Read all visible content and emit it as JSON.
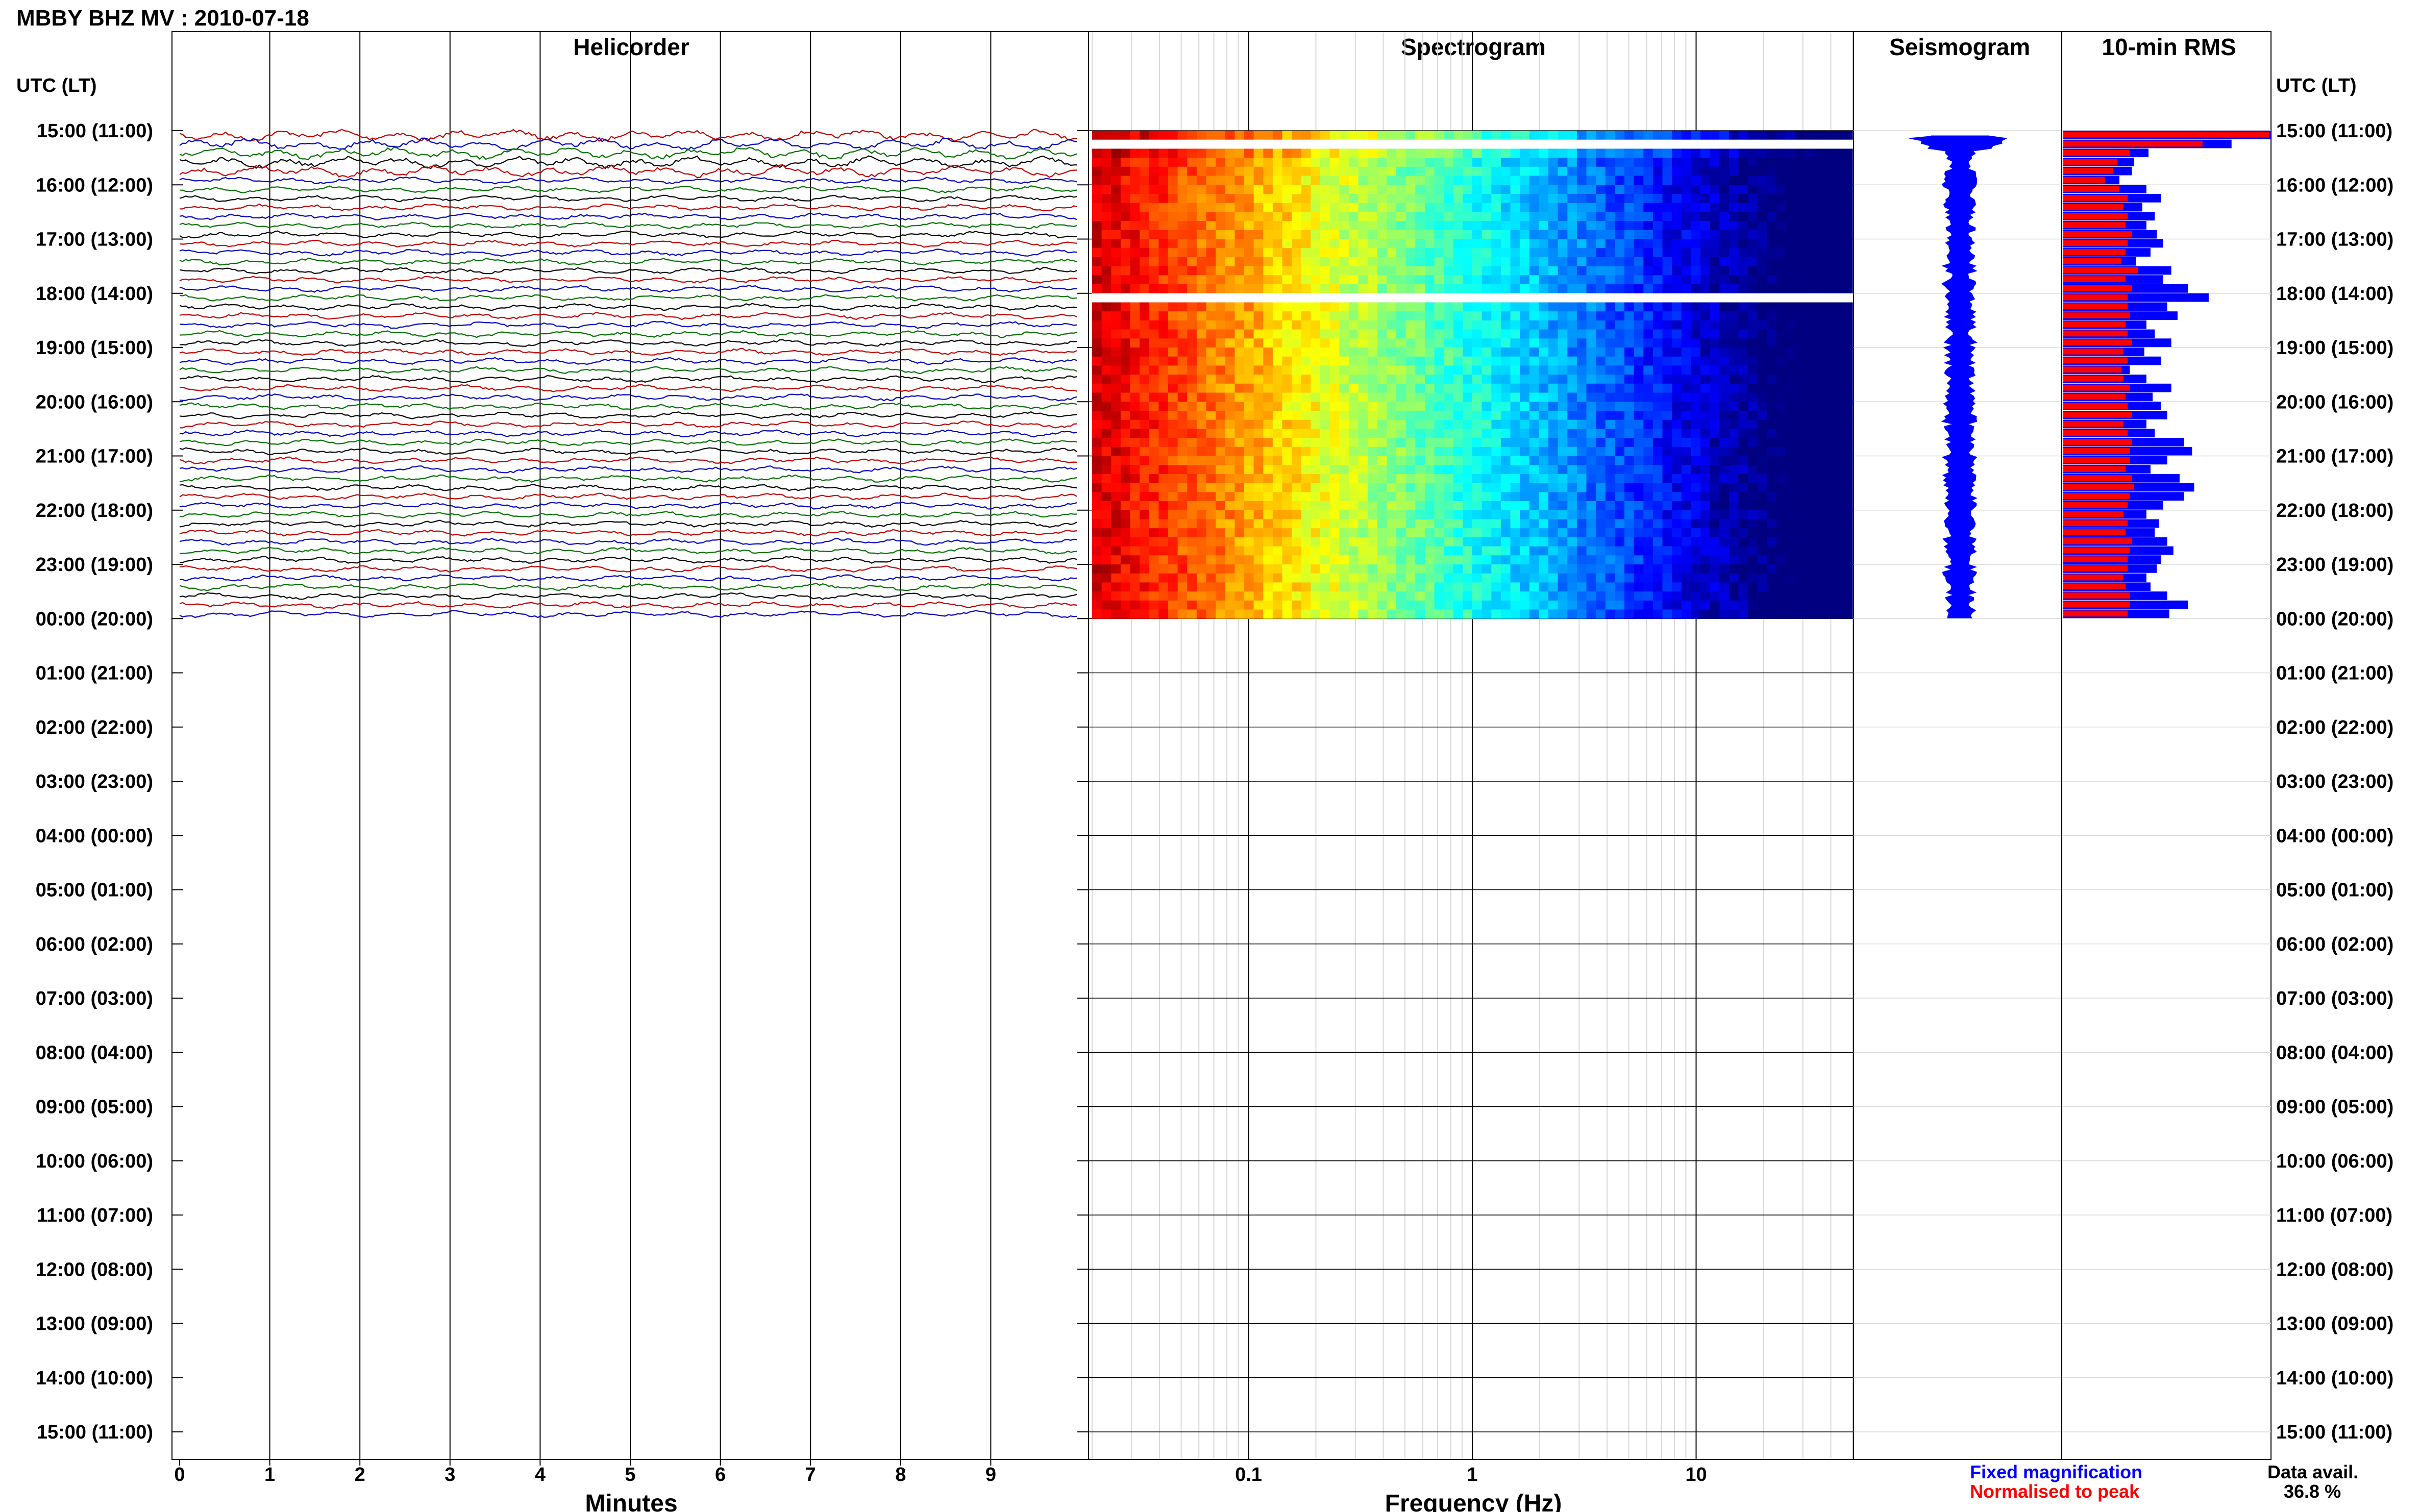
{
  "page_title": "MBBY BHZ MV : 2010-07-18",
  "panels": {
    "helicorder": "Helicorder",
    "spectrogram": "Spectrogram",
    "seismogram": "Seismogram",
    "rms": "10-min RMS"
  },
  "utc_lt_label": "UTC (LT)",
  "hour_labels": [
    "15:00 (11:00)",
    "16:00 (12:00)",
    "17:00 (13:00)",
    "18:00 (14:00)",
    "19:00 (15:00)",
    "20:00 (16:00)",
    "21:00 (17:00)",
    "22:00 (18:00)",
    "23:00 (19:00)",
    "00:00 (20:00)",
    "01:00 (21:00)",
    "02:00 (22:00)",
    "03:00 (23:00)",
    "04:00 (00:00)",
    "05:00 (01:00)",
    "06:00 (02:00)",
    "07:00 (03:00)",
    "08:00 (04:00)",
    "09:00 (05:00)",
    "10:00 (06:00)",
    "11:00 (07:00)",
    "12:00 (08:00)",
    "13:00 (09:00)",
    "14:00 (10:00)",
    "15:00 (11:00)"
  ],
  "colors": {
    "trace_cycle": [
      "#c00000",
      "#0000c0",
      "#007000",
      "#000000"
    ],
    "fixed": "#0000ff",
    "normalised": "#ff0000",
    "axis": "#000000",
    "grid_minor": "#d8d8d8"
  },
  "chart_data": [
    {
      "type": "line",
      "name": "helicorder",
      "title": "Helicorder",
      "xlabel": "Minutes",
      "x_ticks": [
        "0",
        "1",
        "2",
        "3",
        "4",
        "5",
        "6",
        "7",
        "8",
        "9"
      ],
      "xlim": [
        0,
        10
      ],
      "hours_with_data": 9,
      "traces_per_hour": 6,
      "trace_minutes": 10
    },
    {
      "type": "heatmap",
      "name": "spectrogram",
      "title": "Spectrogram",
      "xlabel": "Frequency (Hz)",
      "x_scale": "log",
      "xlim": [
        0.02,
        50
      ],
      "x_ticks": [
        "0.1",
        "1",
        "10"
      ],
      "x_tick_values": [
        0.1,
        1,
        10
      ],
      "gap_rows": [
        1,
        18
      ]
    },
    {
      "type": "area",
      "name": "seismogram",
      "title": "Seismogram",
      "color": "#0000ff"
    },
    {
      "type": "bar",
      "name": "rms",
      "title": "10-min RMS",
      "orientation": "horizontal",
      "xlim": [
        0,
        1
      ],
      "fixed": [
        1.0,
        0.81,
        0.41,
        0.34,
        0.33,
        0.27,
        0.4,
        0.47,
        0.38,
        0.44,
        0.4,
        0.45,
        0.48,
        0.42,
        0.35,
        0.52,
        0.48,
        0.6,
        0.7,
        0.5,
        0.55,
        0.4,
        0.44,
        0.52,
        0.39,
        0.47,
        0.32,
        0.4,
        0.52,
        0.43,
        0.47,
        0.5,
        0.4,
        0.44,
        0.58,
        0.62,
        0.5,
        0.42,
        0.56,
        0.63,
        0.58,
        0.48,
        0.4,
        0.46,
        0.44,
        0.5,
        0.53,
        0.47,
        0.45,
        0.4,
        0.42,
        0.5,
        0.6,
        0.51
      ],
      "normalised": [
        0.99,
        0.67,
        0.32,
        0.26,
        0.24,
        0.2,
        0.27,
        0.31,
        0.29,
        0.31,
        0.3,
        0.33,
        0.31,
        0.3,
        0.28,
        0.36,
        0.3,
        0.33,
        0.31,
        0.31,
        0.32,
        0.3,
        0.31,
        0.33,
        0.29,
        0.31,
        0.28,
        0.29,
        0.32,
        0.3,
        0.31,
        0.33,
        0.29,
        0.31,
        0.33,
        0.32,
        0.32,
        0.3,
        0.33,
        0.34,
        0.32,
        0.31,
        0.29,
        0.31,
        0.3,
        0.33,
        0.32,
        0.31,
        0.31,
        0.29,
        0.3,
        0.32,
        0.32,
        0.31
      ]
    }
  ],
  "legend": {
    "fixed_label": "Fixed magnification",
    "normalised_label": "Normalised to peak",
    "availability_label": "Data avail.",
    "availability_value": "36.8 %"
  }
}
